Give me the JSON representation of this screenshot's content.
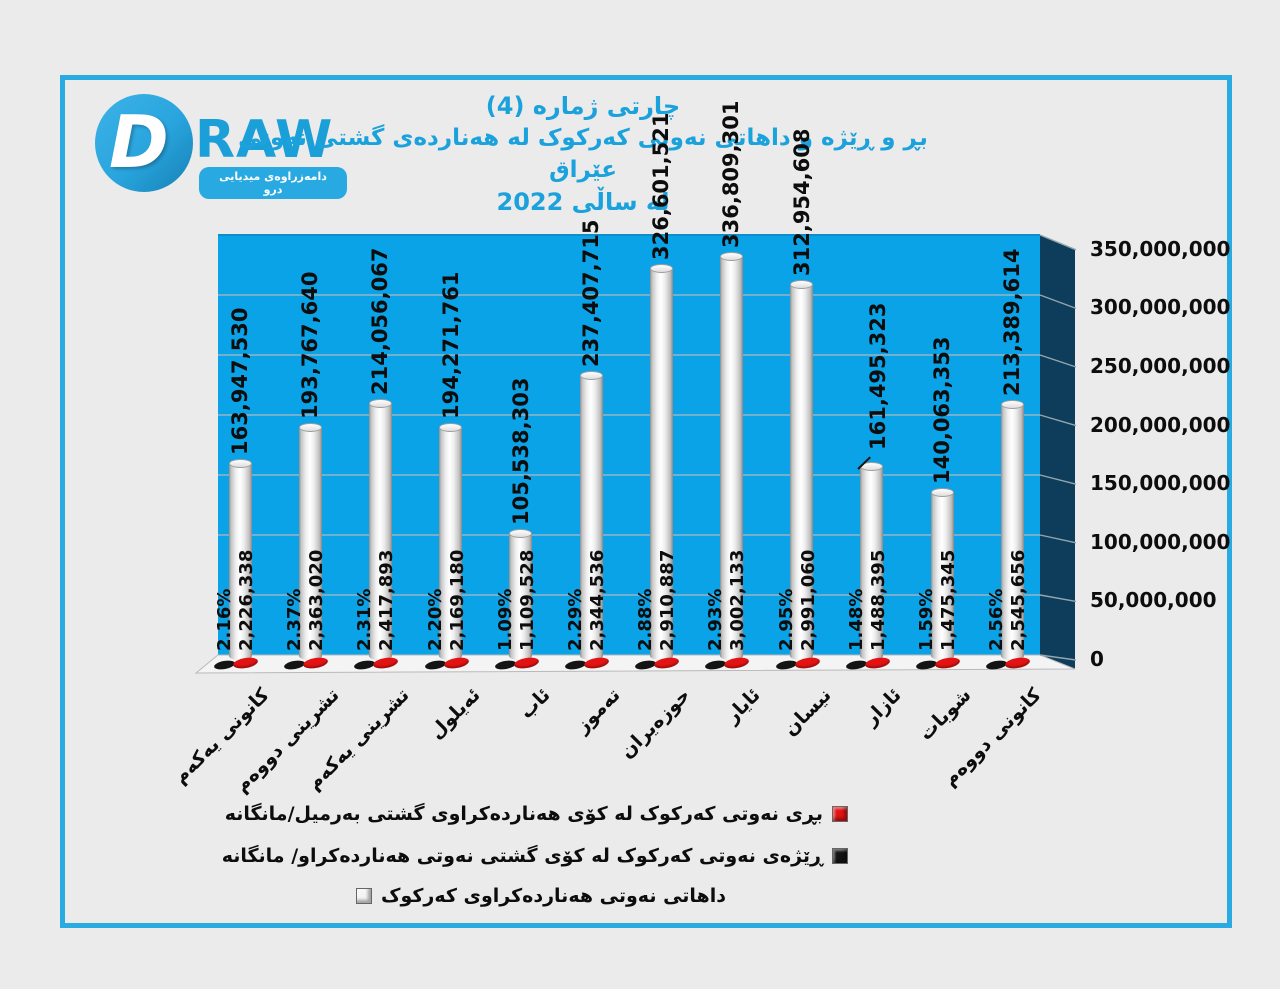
{
  "logo": {
    "letter": "D",
    "wordmark": "RAW",
    "banner": "دامەزراوەی میدیایی درو"
  },
  "title": {
    "line1": "چارتی ژماره (4)",
    "line2": "بڕ و ڕێژه و داهاتی نەوتی کەرکوک لە هەناردەی گشتی نەوتی عێراق",
    "line3": "لە ساڵی 2022"
  },
  "y_axis": {
    "ticks": [
      "0",
      "50,000,000",
      "100,000,000",
      "150,000,000",
      "200,000,000",
      "250,000,000",
      "300,000,000",
      "350,000,000"
    ]
  },
  "legend": [
    {
      "label": "بڕی نەوتی کەرکوک لە کۆی هەناردەکراوی  گشتی بەرمیل/مانگانە",
      "color": "#e31313",
      "marker_side": "right"
    },
    {
      "label": "ڕێژەی نەوتی کەرکوک لە کۆی گشتی نەوتی هەناردەکراو/ مانگانە",
      "color": "#141414",
      "marker_side": "right"
    },
    {
      "label": "داهاتی نەوتی هەناردەکراوی کەرکوک",
      "color": "#f4f4f4",
      "marker_side": "left"
    }
  ],
  "chart_data": {
    "type": "bar",
    "title": "چارتی ژماره (4) — بڕ و ڕێژه و داهاتی نەوتی کەرکوک لە هەناردەی گشتی نەوتی عێراق لە ساڵی 2022",
    "categories": [
      "کانونی یەکەم",
      "تشرینی دووەم",
      "تشرینی یەکەم",
      "ئەیلول",
      "ئاب",
      "تەموز",
      "حوزەیران",
      "ئایار",
      "نیسان",
      "ئازار",
      "شوبات",
      "کانونی دووەم"
    ],
    "series": [
      {
        "name": "بڕی نەوتی کەرکوک لە کۆی هەناردەکراوی  گشتی بەرمیل/مانگانە",
        "type": "marker",
        "color": "#e31313",
        "values": [
          2226338,
          2363020,
          2417893,
          2169180,
          1109528,
          2344536,
          2910887,
          3002133,
          2991060,
          1488395,
          1475345,
          2545656
        ],
        "labels": [
          "2,226,338",
          "2,363,020",
          "2,417,893",
          "2,169,180",
          "1,109,528",
          "2,344,536",
          "2,910,887",
          "3,002,133",
          "2,991,060",
          "1,488,395",
          "1,475,345",
          "2,545,656"
        ]
      },
      {
        "name": "ڕێژەی نەوتی کەرکوک لە کۆی گشتی نەوتی هەناردەکراو/ مانگانە",
        "type": "marker",
        "color": "#141414",
        "values": [
          2.16,
          2.37,
          2.31,
          2.2,
          1.09,
          2.29,
          2.88,
          2.93,
          2.95,
          1.48,
          1.59,
          2.56
        ],
        "labels": [
          "2.16%",
          "2.37%",
          "2.31%",
          "2.20%",
          "1.09%",
          "2.29%",
          "2.88%",
          "2.93%",
          "2.95%",
          "1.48%",
          "1.59%",
          "2.56%"
        ]
      },
      {
        "name": "داهاتی نەوتی هەناردەکراوی کەرکوک",
        "type": "cylinder-bar",
        "color": "#f4f4f4",
        "values": [
          163947530,
          193767640,
          214056067,
          194271761,
          105538303,
          237407715,
          326601521,
          336809301,
          312954608,
          161495323,
          140063353,
          213389614
        ],
        "labels": [
          "163,947,530",
          "193,767,640",
          "214,056,067",
          "194,271,761",
          "105,538,303",
          "237,407,715",
          "326,601,521",
          "336,809,301",
          "312,954,608",
          "161,495,323",
          "140,063,353",
          "213,389,614"
        ]
      }
    ],
    "ylim": [
      0,
      350000000
    ],
    "ytick_step": 50000000,
    "grid": true,
    "legend_position": "bottom",
    "leader_line_index": 9
  },
  "colors": {
    "frame": "#29abe2",
    "title_blue": "#1ba2dc",
    "plot_wall_blue": "#0aa3e8",
    "side_wall_navy": "#0e3d5c",
    "floor_gray": "#f4f4f4",
    "gridline": "#a3b8c2"
  }
}
